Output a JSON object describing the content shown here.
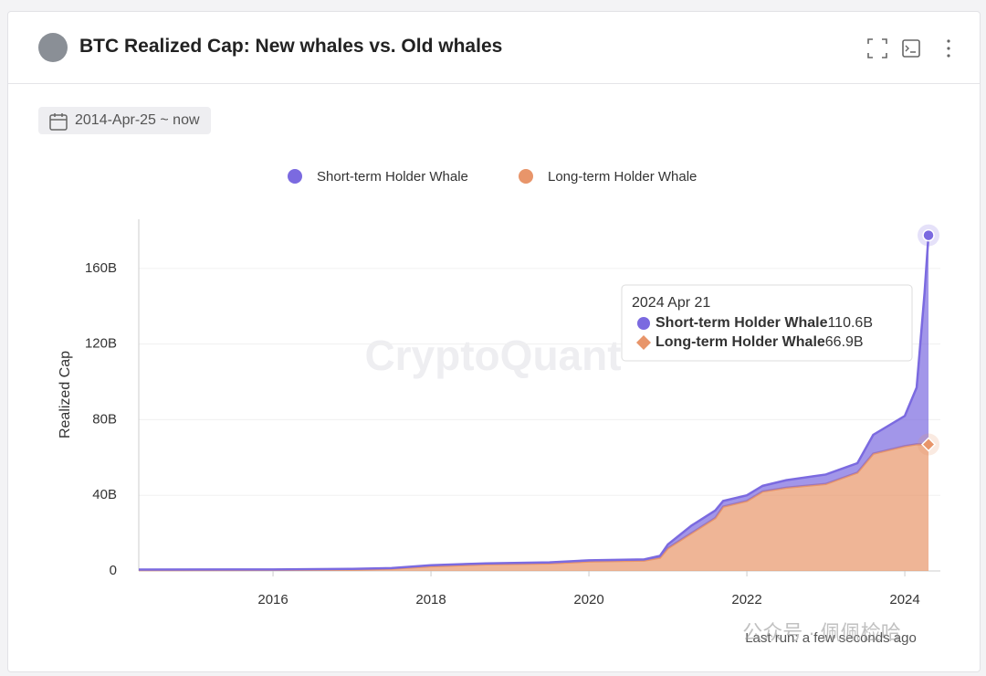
{
  "header": {
    "title": "BTC Realized Cap: New whales vs. Old whales"
  },
  "filter": {
    "date_range": "2014-Apr-25 ~ now"
  },
  "chart_data": {
    "type": "area",
    "stacked": true,
    "y_label": "Realized Cap",
    "watermark": "CryptoQuant",
    "x": [
      2014.3,
      2016,
      2017,
      2017.5,
      2018,
      2018.7,
      2019.5,
      2020,
      2020.7,
      2020.9,
      2021.0,
      2021.3,
      2021.6,
      2021.7,
      2022.0,
      2022.2,
      2022.5,
      2023.0,
      2023.4,
      2023.6,
      2024.0,
      2024.15,
      2024.25,
      2024.3
    ],
    "series": [
      {
        "name": "Short-term Holder Whale",
        "color": "#7b6ae0",
        "values": [
          0.2,
          0.2,
          0.3,
          0.3,
          0.5,
          0.5,
          0.5,
          0.6,
          0.6,
          1,
          2,
          4,
          4,
          3,
          3,
          3,
          4,
          5,
          5,
          10,
          16,
          30,
          80,
          110.6
        ]
      },
      {
        "name": "Long-term Holder Whale",
        "color": "#e8956a",
        "values": [
          0.5,
          0.6,
          0.8,
          1.2,
          2.5,
          3.5,
          4,
          5,
          5.5,
          7,
          12,
          20,
          28,
          34,
          37,
          42,
          44,
          46,
          52,
          62,
          66,
          67,
          67,
          66.9
        ]
      }
    ],
    "xlim": [
      2014.3,
      2024.45
    ],
    "xticks": [
      2016,
      2018,
      2020,
      2022,
      2024
    ],
    "ylim": [
      0,
      186
    ],
    "yticks": [
      0,
      {
        "value": 40,
        "label": "40B"
      },
      {
        "value": 80,
        "label": "80B"
      },
      {
        "value": 120,
        "label": "120B"
      },
      {
        "value": 160,
        "label": "160B"
      }
    ],
    "grid": true,
    "tooltip": {
      "date": "2024 Apr 21",
      "items": [
        {
          "name": "Short-term Holder Whale",
          "value_label": "110.6B"
        },
        {
          "name": "Long-term Holder Whale",
          "value_label": "66.9B"
        }
      ]
    }
  },
  "footer": {
    "status": "Last run: a few seconds ago",
    "overlay": "公众号 · 佩佩检哈"
  }
}
